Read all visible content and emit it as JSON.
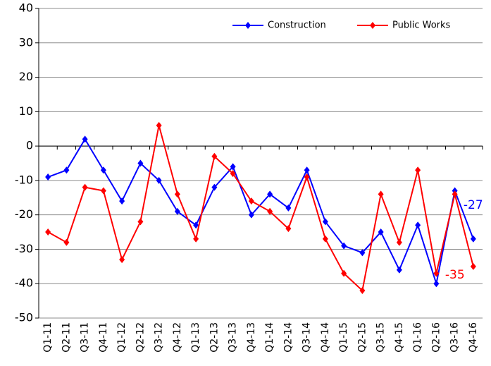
{
  "chart_data": {
    "type": "line",
    "categories": [
      "Q1-11",
      "Q2-11",
      "Q3-11",
      "Q4-11",
      "Q1-12",
      "Q2-12",
      "Q3-12",
      "Q4-12",
      "Q1-13",
      "Q2-13",
      "Q3-13",
      "Q4-13",
      "Q1-14",
      "Q2-14",
      "Q3-14",
      "Q4-14",
      "Q1-15",
      "Q2-15",
      "Q3-15",
      "Q4-15",
      "Q1-16",
      "Q2-16",
      "Q3-16",
      "Q4-16"
    ],
    "series": [
      {
        "name": "Construction",
        "color": "#0000ff",
        "values": [
          -9,
          -7,
          2,
          -7,
          -16,
          -5,
          -10,
          -19,
          -23,
          -12,
          -6,
          -20,
          -14,
          -18,
          -7,
          -22,
          -29,
          -31,
          -25,
          -36,
          -23,
          -40,
          -13,
          -27
        ]
      },
      {
        "name": "Public Works",
        "color": "#ff0000",
        "values": [
          -25,
          -28,
          -12,
          -13,
          -33,
          -22,
          6,
          -14,
          -27,
          -3,
          -8,
          -16,
          -19,
          -24,
          -9,
          -27,
          -37,
          -42,
          -14,
          -28,
          -7,
          -37,
          -14,
          -35
        ]
      }
    ],
    "ylim": [
      -50,
      40
    ],
    "yticks": [
      -50,
      -40,
      -30,
      -20,
      -10,
      0,
      10,
      20,
      30,
      40
    ],
    "grid": true,
    "legend": "top-right"
  }
}
